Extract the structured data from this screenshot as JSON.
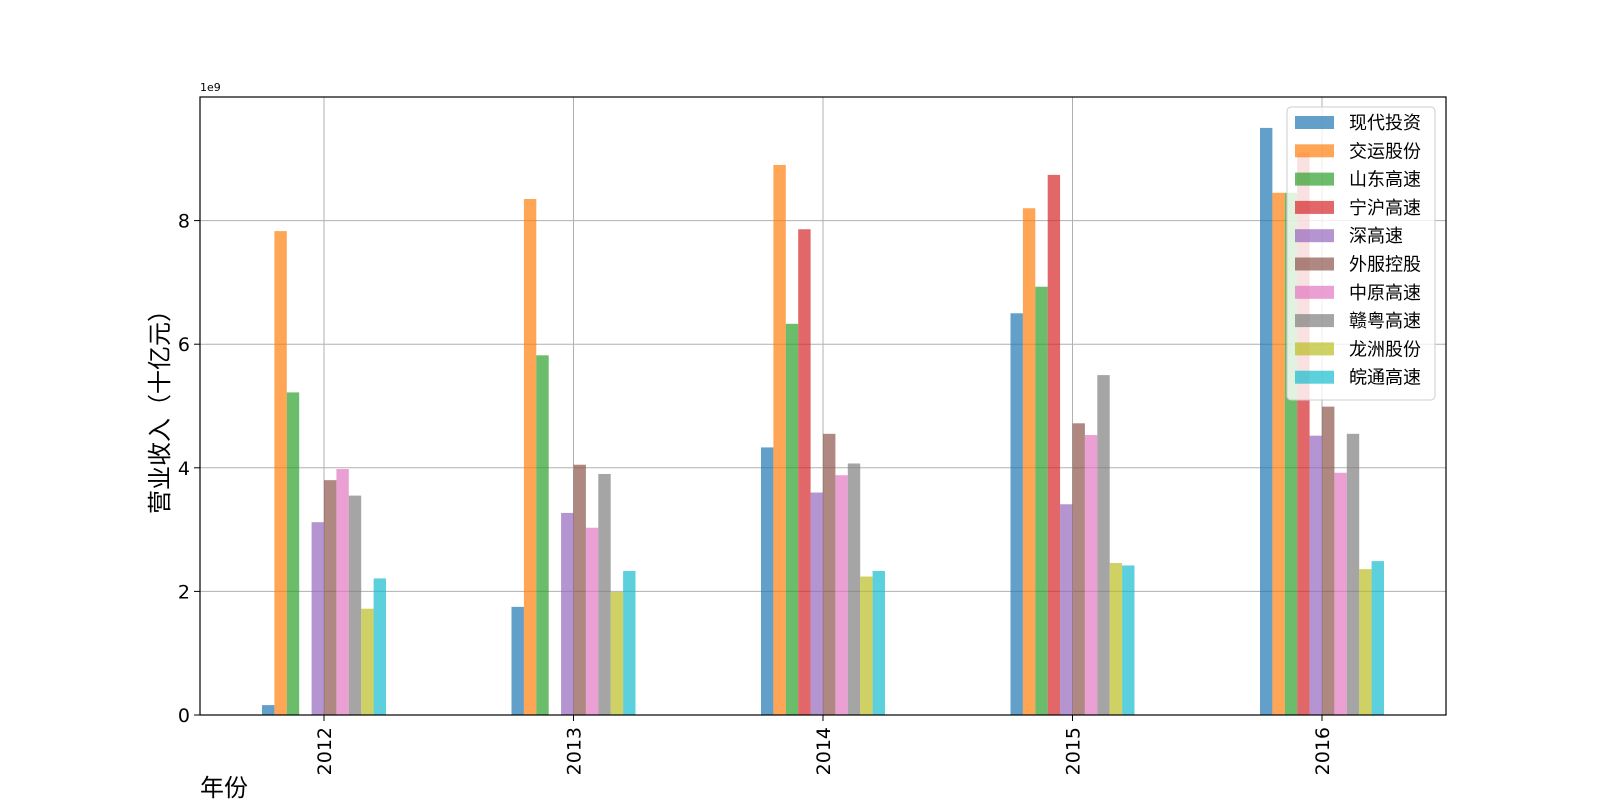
{
  "chart_data": {
    "type": "bar",
    "title": "",
    "xlabel": "年份",
    "ylabel": "营业收入（十亿元）",
    "y_offset_label": "1e9",
    "y_scale": 1000000000,
    "categories": [
      "2012",
      "2013",
      "2014",
      "2015",
      "2016"
    ],
    "ylim": [
      0,
      10
    ],
    "yticks": [
      "0",
      "2",
      "4",
      "6",
      "8"
    ],
    "grid": true,
    "legend_position": "top-right",
    "bar_alpha": 0.7,
    "series": [
      {
        "name": "现代投资",
        "color": "#1f77b4",
        "values": [
          0.16,
          1.75,
          4.33,
          6.5,
          9.5
        ]
      },
      {
        "name": "交运股份",
        "color": "#ff7f0e",
        "values": [
          7.83,
          8.35,
          8.9,
          8.2,
          8.45
        ]
      },
      {
        "name": "山东高速",
        "color": "#2ca02c",
        "values": [
          5.22,
          5.82,
          6.33,
          6.93,
          8.45
        ]
      },
      {
        "name": "宁沪高速",
        "color": "#d62728",
        "values": [
          0,
          0,
          7.86,
          8.74,
          9.1
        ]
      },
      {
        "name": "深高速",
        "color": "#9467bd",
        "values": [
          3.12,
          3.27,
          3.6,
          3.41,
          4.52
        ]
      },
      {
        "name": "外服控股",
        "color": "#8c564b",
        "values": [
          3.8,
          4.05,
          4.55,
          4.72,
          4.99
        ]
      },
      {
        "name": "中原高速",
        "color": "#e377c2",
        "values": [
          3.98,
          3.03,
          3.88,
          4.53,
          3.92
        ]
      },
      {
        "name": "赣粤高速",
        "color": "#7f7f7f",
        "values": [
          3.55,
          3.9,
          4.07,
          5.5,
          4.55
        ]
      },
      {
        "name": "龙洲股份",
        "color": "#bcbd22",
        "values": [
          1.72,
          1.99,
          2.24,
          2.46,
          2.36
        ]
      },
      {
        "name": "皖通高速",
        "color": "#17becf",
        "values": [
          2.21,
          2.33,
          2.33,
          2.42,
          2.49
        ]
      }
    ]
  }
}
